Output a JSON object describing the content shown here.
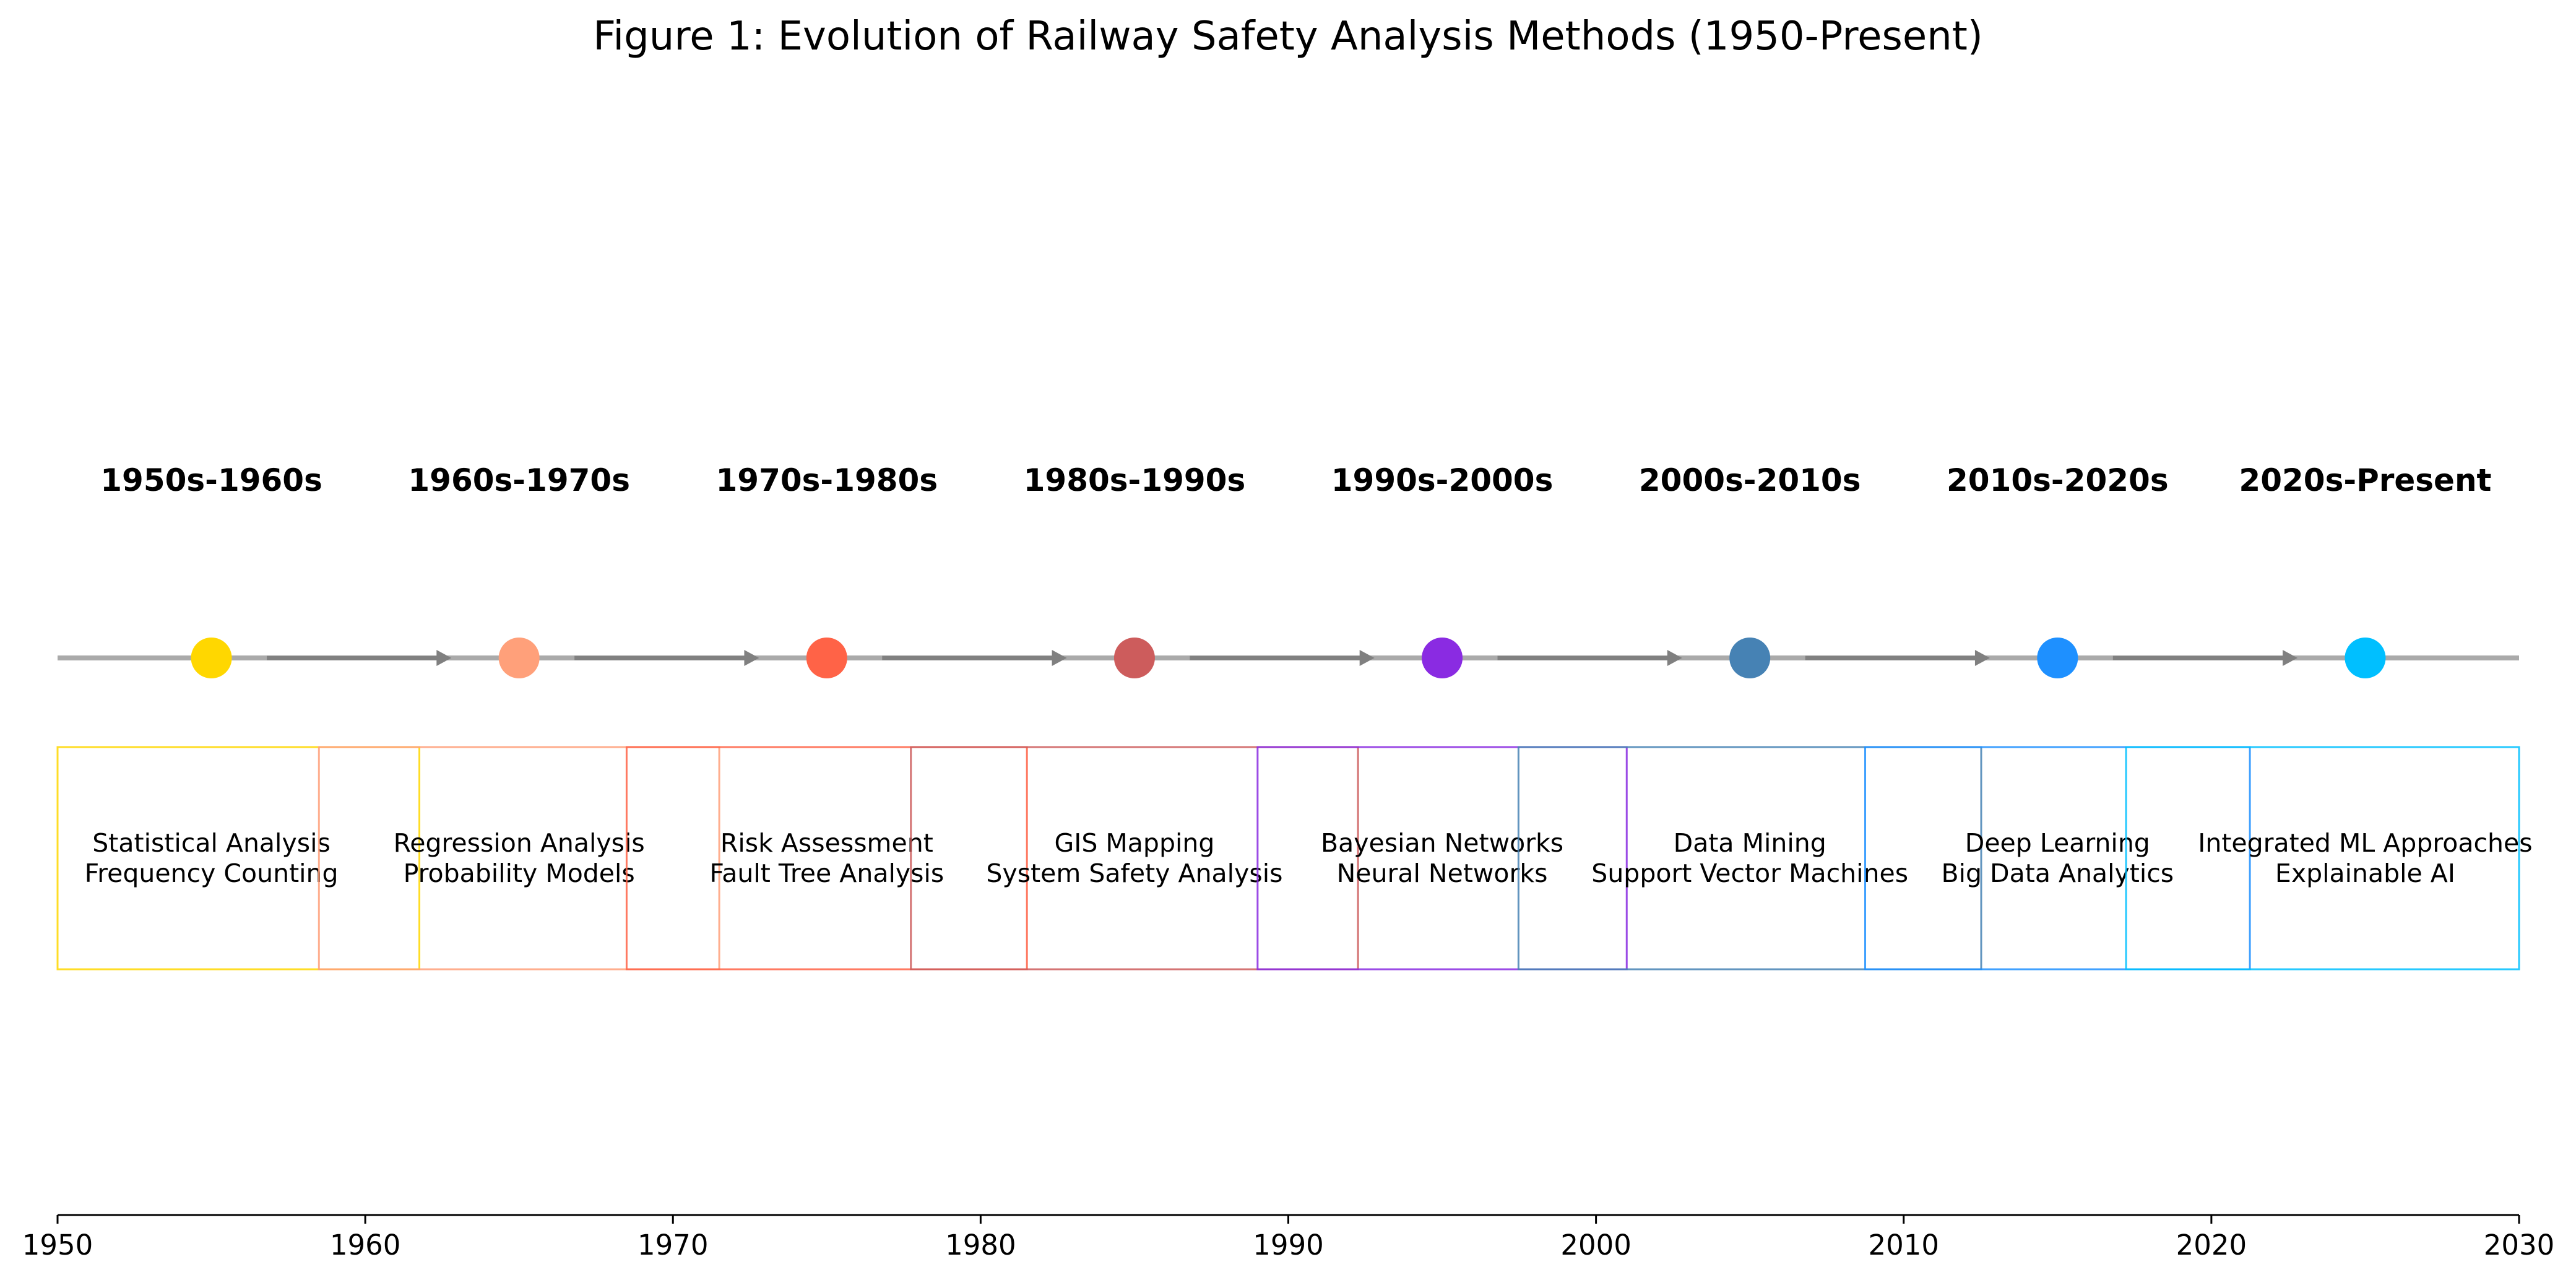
{
  "title": "Figure 1: Evolution of Railway Safety Analysis Methods (1950-Present)",
  "chart_data": {
    "type": "timeline",
    "xlim": [
      1950,
      2030
    ],
    "x_ticks": [
      1950,
      1960,
      1970,
      1980,
      1990,
      2000,
      2010,
      2020,
      2030
    ],
    "eras": [
      {
        "label": "1950s-1960s",
        "year": 1955,
        "color": "#FFD700",
        "methods": [
          "Statistical Analysis",
          "Frequency Counting"
        ]
      },
      {
        "label": "1960s-1970s",
        "year": 1965,
        "color": "#FFA07A",
        "methods": [
          "Regression Analysis",
          "Probability Models"
        ]
      },
      {
        "label": "1970s-1980s",
        "year": 1975,
        "color": "#FF6347",
        "methods": [
          "Risk Assessment",
          "Fault Tree Analysis"
        ]
      },
      {
        "label": "1980s-1990s",
        "year": 1985,
        "color": "#CD5C5C",
        "methods": [
          "GIS Mapping",
          "System Safety Analysis"
        ]
      },
      {
        "label": "1990s-2000s",
        "year": 1995,
        "color": "#8A2BE2",
        "methods": [
          "Bayesian Networks",
          "Neural Networks"
        ]
      },
      {
        "label": "2000s-2010s",
        "year": 2005,
        "color": "#4682B4",
        "methods": [
          "Data Mining",
          "Support Vector Machines"
        ]
      },
      {
        "label": "2010s-2020s",
        "year": 2015,
        "color": "#1E90FF",
        "methods": [
          "Deep Learning",
          "Big Data Analytics"
        ]
      },
      {
        "label": "2020s-Present",
        "year": 2025,
        "color": "#00BFFF",
        "methods": [
          "Integrated ML Approaches",
          "Explainable AI"
        ]
      }
    ],
    "timeline_color": "#AAAAAA",
    "arrow_color": "#808080"
  }
}
